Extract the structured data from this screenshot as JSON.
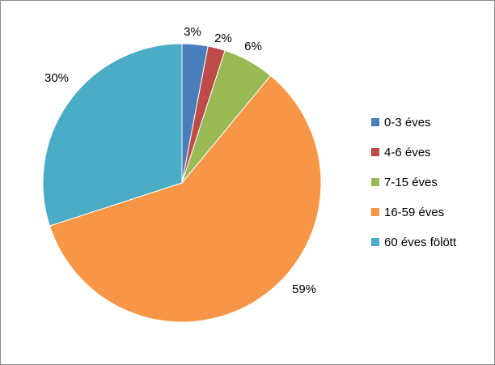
{
  "chart_data": {
    "type": "pie",
    "title": "",
    "categories": [
      "0-3 éves",
      "4-6 éves",
      "7-15 éves",
      "16-59 éves",
      "60 éves fölött"
    ],
    "values": [
      3,
      2,
      6,
      59,
      30
    ],
    "labels": [
      "3%",
      "2%",
      "6%",
      "59%",
      "30%"
    ],
    "colors": [
      "#4a7ebb",
      "#be4b48",
      "#98b954",
      "#f79646",
      "#4bacc6"
    ],
    "legend_position": "right"
  }
}
